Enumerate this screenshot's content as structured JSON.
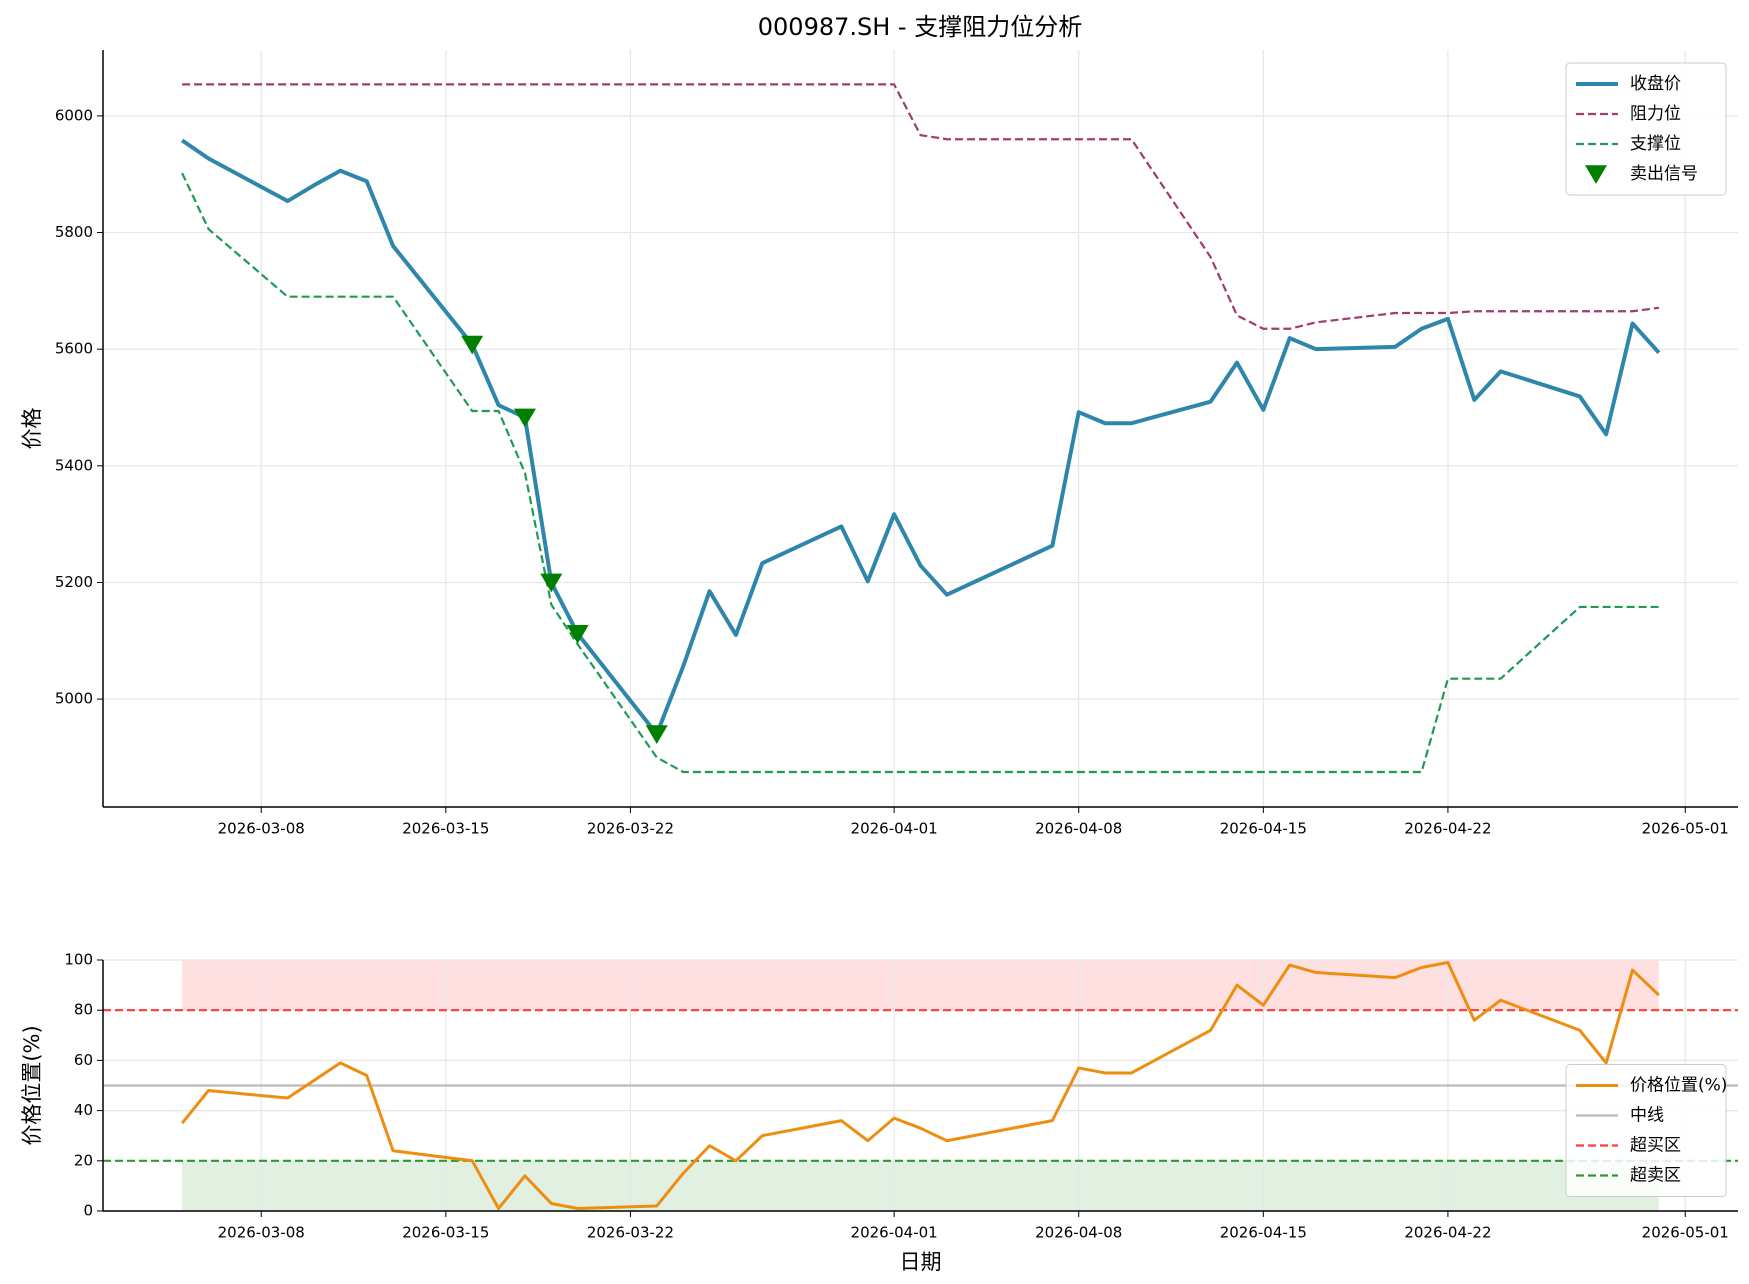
{
  "chart_data": [
    {
      "type": "line",
      "title": "000987.SH - 支撑阻力位分析",
      "ylabel": "价格",
      "x": [
        "2026-03-05",
        "2026-03-06",
        "2026-03-09",
        "2026-03-10",
        "2026-03-11",
        "2026-03-12",
        "2026-03-13",
        "2026-03-16",
        "2026-03-17",
        "2026-03-18",
        "2026-03-19",
        "2026-03-20",
        "2026-03-23",
        "2026-03-24",
        "2026-03-25",
        "2026-03-26",
        "2026-03-27",
        "2026-03-30",
        "2026-03-31",
        "2026-04-01",
        "2026-04-02",
        "2026-04-03",
        "2026-04-07",
        "2026-04-08",
        "2026-04-09",
        "2026-04-10",
        "2026-04-13",
        "2026-04-14",
        "2026-04-15",
        "2026-04-16",
        "2026-04-17",
        "2026-04-20",
        "2026-04-21",
        "2026-04-22",
        "2026-04-23",
        "2026-04-24",
        "2026-04-27",
        "2026-04-28",
        "2026-04-29",
        "2026-04-30"
      ],
      "series": [
        {
          "name": "收盘价",
          "color": "#2e86ab",
          "linestyle": "solid",
          "width": 4,
          "values": [
            5958,
            5927,
            5854,
            5881,
            5906,
            5888,
            5777,
            5608,
            5504,
            5483,
            5200,
            5112,
            4940,
            5056,
            5185,
            5110,
            5233,
            5296,
            5202,
            5317,
            5229,
            5179,
            5263,
            5492,
            5473,
            5473,
            5510,
            5577,
            5496,
            5619,
            5600,
            5604,
            5635,
            5652,
            5513,
            5562,
            5519,
            5454,
            5644,
            5594
          ]
        },
        {
          "name": "阻力位",
          "color": "#a23b72",
          "linestyle": "dashed",
          "width": 2.2,
          "values": [
            6054,
            6054,
            6054,
            6054,
            6054,
            6054,
            6054,
            6054,
            6054,
            6054,
            6054,
            6054,
            6054,
            6054,
            6054,
            6054,
            6054,
            6054,
            6054,
            6054,
            5967,
            5960,
            5960,
            5960,
            5960,
            5960,
            5758,
            5658,
            5635,
            5635,
            5646,
            5662,
            5662,
            5662,
            5665,
            5665,
            5665,
            5665,
            5665,
            5671
          ]
        },
        {
          "name": "支撑位",
          "color": "#1f9a55",
          "linestyle": "dashed",
          "width": 2.2,
          "values": [
            5902,
            5806,
            5690,
            5690,
            5690,
            5690,
            5690,
            5494,
            5494,
            5388,
            5162,
            5094,
            4900,
            4875,
            4875,
            4875,
            4875,
            4875,
            4875,
            4875,
            4875,
            4875,
            4875,
            4875,
            4875,
            4875,
            4875,
            4875,
            4875,
            4875,
            4875,
            4875,
            4875,
            5035,
            5035,
            5035,
            5158,
            5158,
            5158,
            5158
          ]
        },
        {
          "name": "卖出信号",
          "color": "#008000",
          "marker": "v",
          "values": [
            null,
            null,
            null,
            null,
            null,
            null,
            null,
            5608,
            null,
            5483,
            5200,
            5112,
            4940,
            null,
            null,
            null,
            null,
            null,
            null,
            null,
            null,
            null,
            null,
            null,
            null,
            null,
            null,
            null,
            null,
            null,
            null,
            null,
            null,
            null,
            null,
            null,
            null,
            null,
            null,
            null
          ]
        }
      ],
      "xlim": [
        "2026-03-02",
        "2026-05-03"
      ],
      "xticks": [
        "2026-03-08",
        "2026-03-15",
        "2026-03-22",
        "2026-04-01",
        "2026-04-08",
        "2026-04-15",
        "2026-04-22",
        "2026-05-01"
      ],
      "ylim": [
        4815,
        6113
      ],
      "yticks": [
        5000,
        5200,
        5400,
        5600,
        5800,
        6000
      ],
      "grid": true,
      "legend": "upper right"
    },
    {
      "type": "line",
      "ylabel": "价格位置(%)",
      "xlabel": "日期",
      "x": [
        "2026-03-05",
        "2026-03-06",
        "2026-03-09",
        "2026-03-10",
        "2026-03-11",
        "2026-03-12",
        "2026-03-13",
        "2026-03-16",
        "2026-03-17",
        "2026-03-18",
        "2026-03-19",
        "2026-03-20",
        "2026-03-23",
        "2026-03-24",
        "2026-03-25",
        "2026-03-26",
        "2026-03-27",
        "2026-03-30",
        "2026-03-31",
        "2026-04-01",
        "2026-04-02",
        "2026-04-03",
        "2026-04-07",
        "2026-04-08",
        "2026-04-09",
        "2026-04-10",
        "2026-04-13",
        "2026-04-14",
        "2026-04-15",
        "2026-04-16",
        "2026-04-17",
        "2026-04-20",
        "2026-04-21",
        "2026-04-22",
        "2026-04-23",
        "2026-04-24",
        "2026-04-27",
        "2026-04-28",
        "2026-04-29",
        "2026-04-30"
      ],
      "series": [
        {
          "name": "价格位置(%)",
          "color": "#ee8e10",
          "linestyle": "solid",
          "width": 3,
          "values": [
            35,
            48,
            45,
            52,
            59,
            54,
            24,
            20,
            1,
            14,
            3,
            1,
            2,
            15,
            26,
            20,
            30,
            36,
            28,
            37,
            33,
            28,
            36,
            57,
            55,
            55,
            72,
            90,
            82,
            98,
            95,
            93,
            97,
            99,
            76,
            84,
            72,
            59,
            96,
            86
          ]
        }
      ],
      "hlines": [
        {
          "name": "中线",
          "value": 50,
          "color": "#bbbbbb",
          "linestyle": "solid"
        },
        {
          "name": "超买区",
          "value": 80,
          "color": "#ff3b3b",
          "linestyle": "dashed"
        },
        {
          "name": "超卖区",
          "value": 20,
          "color": "#2e9a2e",
          "linestyle": "dashed"
        }
      ],
      "bands": [
        {
          "from": 80,
          "to": 100,
          "color": "#ffe0e0"
        },
        {
          "from": 0,
          "to": 20,
          "color": "#e2f0e2"
        }
      ],
      "xlim": [
        "2026-03-02",
        "2026-05-03"
      ],
      "xticks": [
        "2026-03-08",
        "2026-03-15",
        "2026-03-22",
        "2026-04-01",
        "2026-04-08",
        "2026-04-15",
        "2026-04-22",
        "2026-05-01"
      ],
      "ylim": [
        0,
        100
      ],
      "yticks": [
        0,
        20,
        40,
        60,
        80,
        100
      ],
      "grid": true,
      "legend": "center right"
    }
  ]
}
